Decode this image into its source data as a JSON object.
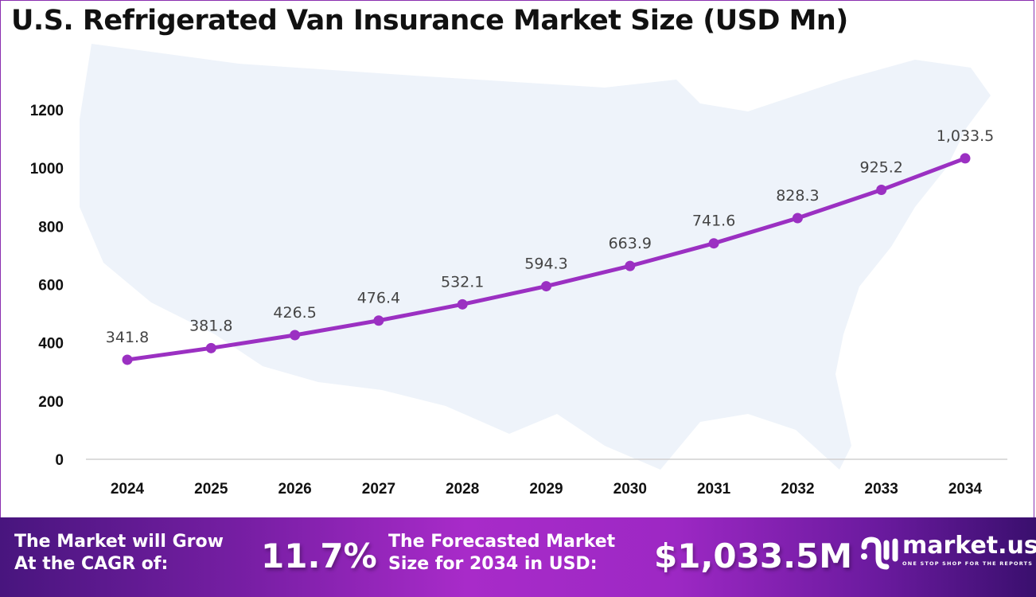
{
  "chart_data": {
    "type": "line",
    "title": "U.S. Refrigerated Van Insurance Market Size (USD Mn)",
    "categories": [
      "2024",
      "2025",
      "2026",
      "2027",
      "2028",
      "2029",
      "2030",
      "2031",
      "2032",
      "2033",
      "2034"
    ],
    "values": [
      341.8,
      381.8,
      426.5,
      476.4,
      532.1,
      594.3,
      663.9,
      741.6,
      828.3,
      925.2,
      1033.5
    ],
    "data_labels": [
      "341.8",
      "381.8",
      "426.5",
      "476.4",
      "532.1",
      "594.3",
      "663.9",
      "741.6",
      "828.3",
      "925.2",
      "1,033.5"
    ],
    "yticks": [
      0,
      200,
      400,
      600,
      800,
      1000,
      1200
    ],
    "ylim": [
      0,
      1200
    ],
    "grid": false,
    "line_color": "#9b30c2",
    "background": "US map silhouette"
  },
  "footer": {
    "cagr_label": "The Market will Grow\nAt the CAGR of:",
    "cagr_value": "11.7%",
    "forecast_label": "The Forecasted Market\nSize for 2034 in USD:",
    "forecast_value": "$1,033.5M",
    "logo_name": "market.us",
    "logo_tagline": "ONE STOP SHOP FOR THE REPORTS"
  }
}
